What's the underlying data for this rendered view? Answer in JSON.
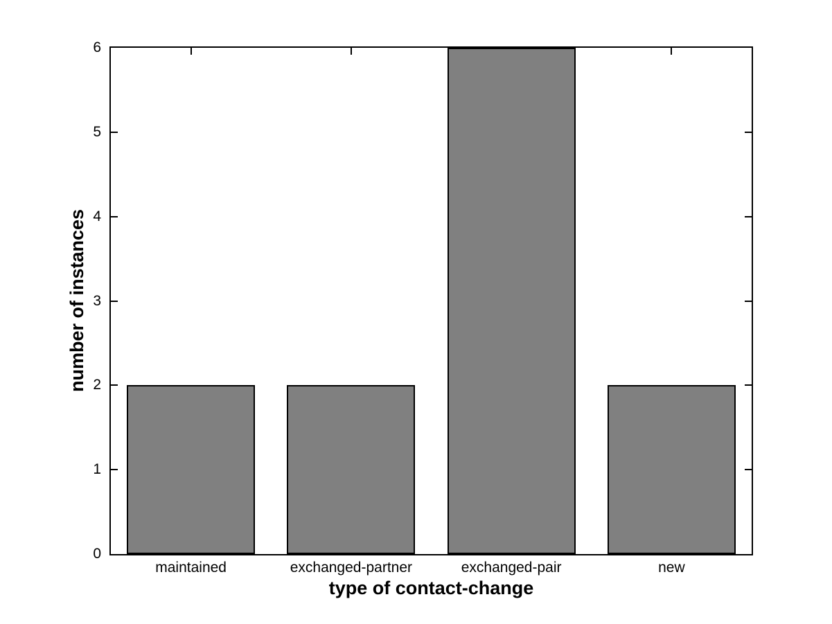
{
  "figure": {
    "background": "#ffffff"
  },
  "chart_data": {
    "type": "bar",
    "categories": [
      "maintained",
      "exchanged-partner",
      "exchanged-pair",
      "new"
    ],
    "values": [
      2,
      2,
      6,
      2
    ],
    "title": "",
    "xlabel": "type of contact-change",
    "ylabel": "number of instances",
    "ylim": [
      0,
      6
    ],
    "yticks": [
      0,
      1,
      2,
      3,
      4,
      5,
      6
    ],
    "ytick_labels": [
      "0",
      "1",
      "2",
      "3",
      "4",
      "5",
      "6"
    ],
    "bar_width_fraction": 0.8,
    "bar_color": "#808080",
    "bar_edge_color": "#000000",
    "axis_color": "#000000",
    "grid": false,
    "legend": null
  }
}
